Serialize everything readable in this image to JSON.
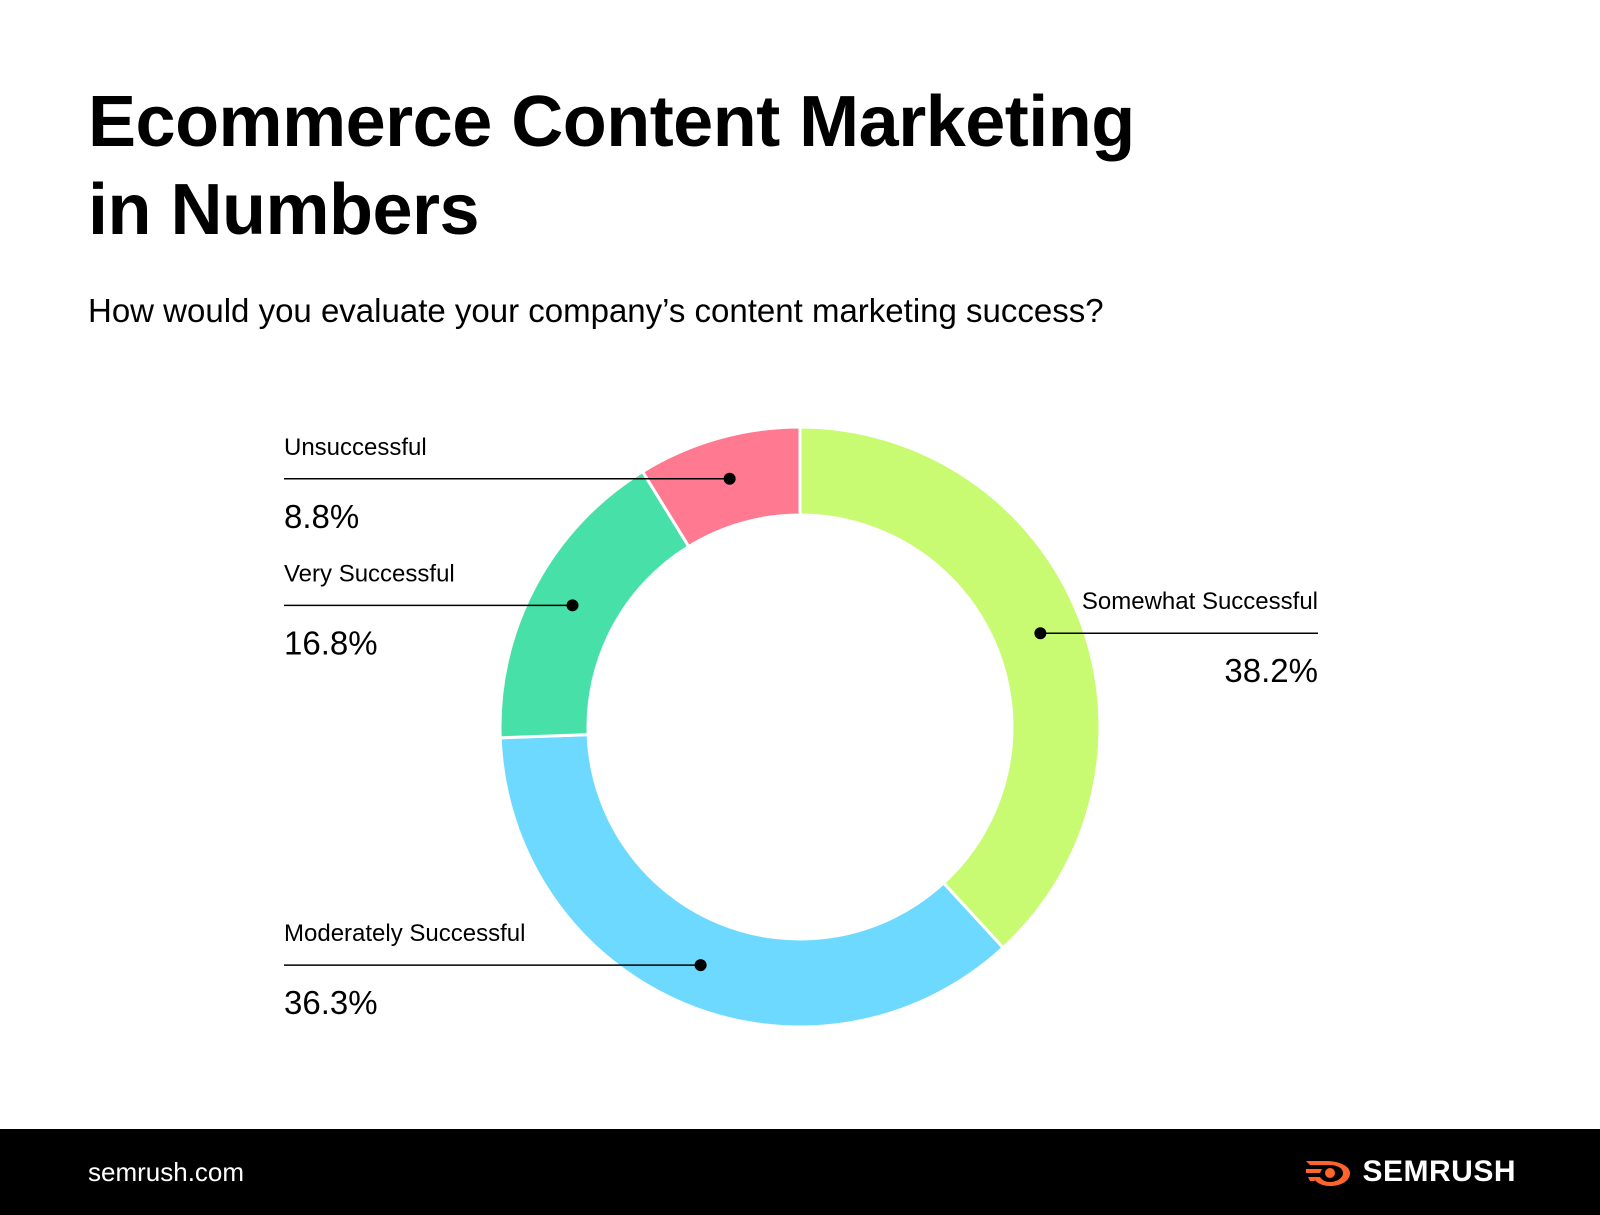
{
  "header": {
    "title_line1": "Ecommerce Content Marketing",
    "title_line2": "in Numbers",
    "subtitle": "How would you evaluate your company’s content marketing success?"
  },
  "chart_data": {
    "type": "pie",
    "variant": "donut",
    "slices": [
      {
        "label": "Somewhat Successful",
        "value": 38.2,
        "value_text": "38.2%",
        "color": "#c8fb72"
      },
      {
        "label": "Moderately Successful",
        "value": 36.3,
        "value_text": "36.3%",
        "color": "#6dd9ff"
      },
      {
        "label": "Very Successful",
        "value": 16.8,
        "value_text": "16.8%",
        "color": "#47e0a8"
      },
      {
        "label": "Unsuccessful",
        "value": 8.8,
        "value_text": "8.8%",
        "color": "#ff7a90"
      }
    ]
  },
  "footer": {
    "url": "semrush.com",
    "brand": "SEMRUSH",
    "logo_icon": "semrush-flame-icon",
    "brand_color": "#ff642d"
  }
}
